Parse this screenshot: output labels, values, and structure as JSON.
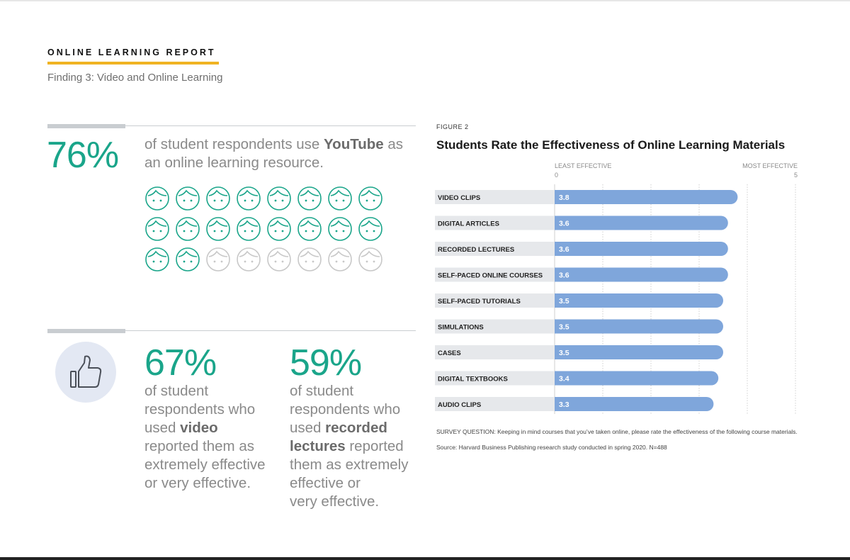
{
  "header": {
    "report_title": "ONLINE LEARNING REPORT",
    "finding": "Finding 3: Video and Online Learning"
  },
  "stat_youtube": {
    "percent": "76%",
    "text_before": "of student respondents use ",
    "text_bold": "YouTube",
    "text_after": " as an online learning resource.",
    "icons_total": 24,
    "icons_filled": 18,
    "colors": {
      "filled": "#1aa58a",
      "empty": "#c8c8c8"
    }
  },
  "stat_video": {
    "percent": "67%",
    "line1": "of student",
    "line2": "respondents who",
    "line3_before": "used ",
    "line3_bold": "video",
    "line4": "reported them as",
    "line5": "extremely effective",
    "line6": "or very effective."
  },
  "stat_lectures": {
    "percent": "59%",
    "line1": "of student",
    "line2": "respondents who",
    "line3_before": "used ",
    "line3_bold": "recorded",
    "line4_bold": "lectures",
    "line4_after": " reported",
    "line5": "them as extremely",
    "line6": "effective or",
    "line7": "very effective."
  },
  "thumb_icon": "thumbs-up-icon",
  "figure_label": "FIGURE 2",
  "chart_data": {
    "type": "bar",
    "orientation": "horizontal",
    "title": "Students Rate the Effectiveness of Online Learning Materials",
    "axis_min_label": "LEAST EFFECTIVE",
    "axis_max_label": "MOST EFFECTIVE",
    "xlim": [
      0,
      5
    ],
    "ticks": [
      "0",
      "5"
    ],
    "categories": [
      "VIDEO CLIPS",
      "DIGITAL ARTICLES",
      "RECORDED LECTURES",
      "SELF-PACED ONLINE COURSES",
      "SELF-PACED TUTORIALS",
      "SIMULATIONS",
      "CASES",
      "DIGITAL TEXTBOOKS",
      "AUDIO CLIPS"
    ],
    "values": [
      3.8,
      3.6,
      3.6,
      3.6,
      3.5,
      3.5,
      3.5,
      3.4,
      3.3
    ],
    "value_labels": [
      "3.8",
      "3.6",
      "3.6",
      "3.6",
      "3.5",
      "3.5",
      "3.5",
      "3.4",
      "3.3"
    ],
    "grid": true,
    "colors": {
      "bar": "#7fa6db",
      "label_bg": "#e6e8eb",
      "grid": "#cfcfcf"
    }
  },
  "notes": {
    "survey_question": "SURVEY QUESTION: Keeping in mind courses that you’ve taken online, please rate the effectiveness of the following course materials.",
    "source": "Source: Harvard Business Publishing research study conducted in spring 2020. N=488"
  }
}
